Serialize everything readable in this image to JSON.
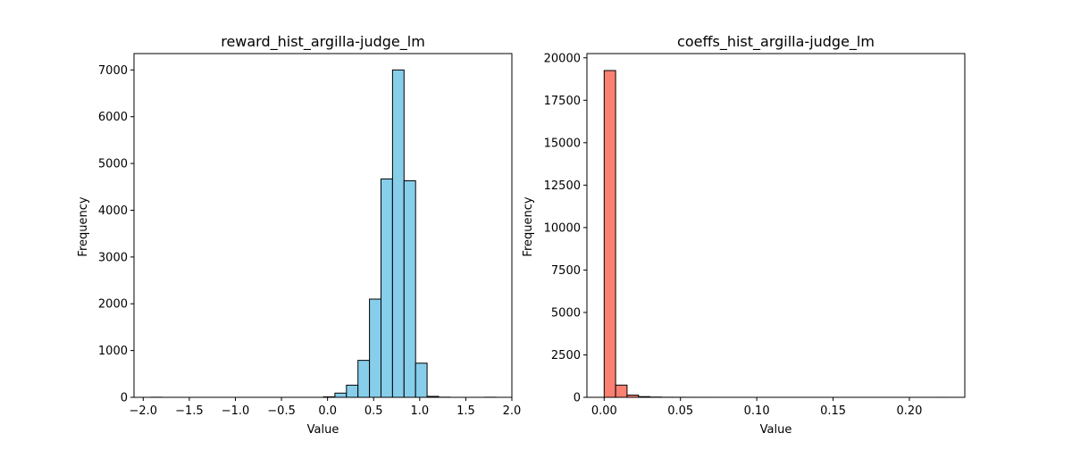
{
  "chart_data": [
    {
      "type": "bar",
      "title": "reward_hist_argilla-judge_lm",
      "xlabel": "Value",
      "ylabel": "Frequency",
      "xlim": [
        -2.1,
        2.0
      ],
      "ylim": [
        0,
        7350
      ],
      "xticks": [
        -2.0,
        -1.5,
        -1.0,
        -0.5,
        0.0,
        0.5,
        1.0,
        1.5,
        2.0
      ],
      "xtick_labels": [
        "−2.0",
        "−1.5",
        "−1.0",
        "−0.5",
        "0.0",
        "0.5",
        "1.0",
        "1.5",
        "2.0"
      ],
      "yticks": [
        0,
        1000,
        2000,
        3000,
        4000,
        5000,
        6000,
        7000
      ],
      "ytick_labels": [
        "0",
        "1000",
        "2000",
        "3000",
        "4000",
        "5000",
        "6000",
        "7000"
      ],
      "bar_color": "#87CEEB",
      "edge_color": "#000000",
      "bin_edges": [
        -1.92,
        -1.795,
        -1.67,
        -1.545,
        -1.42,
        -1.295,
        -1.17,
        -1.045,
        -0.92,
        -0.795,
        -0.67,
        -0.545,
        -0.42,
        -0.295,
        -0.17,
        -0.045,
        0.08,
        0.205,
        0.33,
        0.455,
        0.58,
        0.705,
        0.83,
        0.955,
        1.08,
        1.205,
        1.33,
        1.455,
        1.58,
        1.705,
        1.83
      ],
      "values": [
        2,
        0,
        0,
        0,
        0,
        0,
        0,
        0,
        0,
        0,
        0,
        0,
        0,
        0,
        0,
        10,
        90,
        260,
        790,
        2100,
        4670,
        7000,
        4630,
        730,
        20,
        3,
        0,
        0,
        0,
        2
      ]
    },
    {
      "type": "bar",
      "title": "coeffs_hist_argilla-judge_lm",
      "xlabel": "Value",
      "ylabel": "Frequency",
      "xlim": [
        -0.0113,
        0.2363
      ],
      "ylim": [
        0,
        20250
      ],
      "xticks": [
        0.0,
        0.05,
        0.1,
        0.15,
        0.2
      ],
      "xtick_labels": [
        "0.00",
        "0.05",
        "0.10",
        "0.15",
        "0.20"
      ],
      "yticks": [
        0,
        2500,
        5000,
        7500,
        10000,
        12500,
        15000,
        17500,
        20000
      ],
      "ytick_labels": [
        "0",
        "2500",
        "5000",
        "7500",
        "10000",
        "12500",
        "15000",
        "17500",
        "20000"
      ],
      "bar_color": "#FA8072",
      "edge_color": "#000000",
      "bin_edges": [
        0.0,
        0.0075,
        0.015,
        0.0225,
        0.03,
        0.0375,
        0.045,
        0.0525,
        0.06,
        0.0675,
        0.075,
        0.0825,
        0.09,
        0.0975,
        0.105,
        0.1125,
        0.12,
        0.1275,
        0.135,
        0.1425,
        0.15,
        0.1575,
        0.165,
        0.1725,
        0.18,
        0.1875,
        0.195,
        0.2025,
        0.21,
        0.2175,
        0.225
      ],
      "values": [
        19250,
        720,
        130,
        40,
        15,
        5,
        3,
        2,
        1,
        1,
        0,
        0,
        0,
        0,
        0,
        0,
        0,
        0,
        0,
        0,
        0,
        0,
        0,
        0,
        0,
        0,
        0,
        0,
        0,
        1
      ]
    }
  ]
}
